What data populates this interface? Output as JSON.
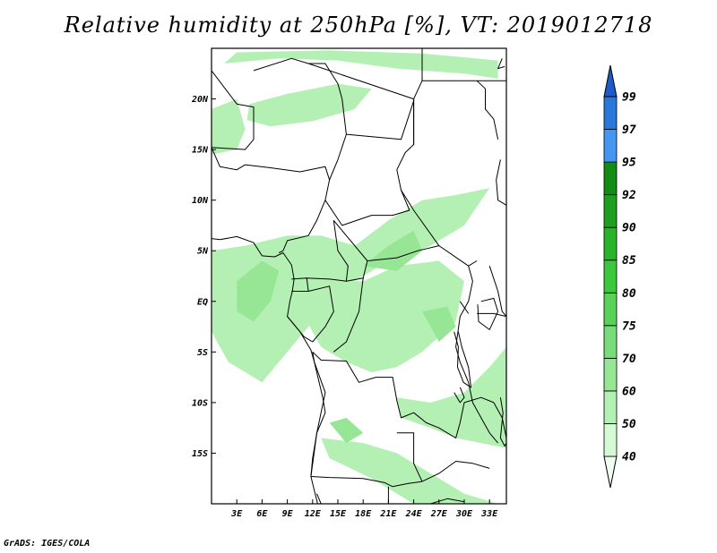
{
  "title": "Relative humidity at 250hPa [%], VT: 2019012718",
  "credit": "GrADS: IGES/COLA",
  "map": {
    "projection": "latlon",
    "lon_range": [
      0,
      35
    ],
    "lat_range": [
      -20,
      25
    ],
    "lat_ticks": [
      {
        "value": 20,
        "label": "20N"
      },
      {
        "value": 15,
        "label": "15N"
      },
      {
        "value": 10,
        "label": "10N"
      },
      {
        "value": 5,
        "label": "5N"
      },
      {
        "value": 0,
        "label": "EQ"
      },
      {
        "value": -5,
        "label": "5S"
      },
      {
        "value": -10,
        "label": "10S"
      },
      {
        "value": -15,
        "label": "15S"
      }
    ],
    "lon_ticks": [
      {
        "value": 3,
        "label": "3E"
      },
      {
        "value": 6,
        "label": "6E"
      },
      {
        "value": 9,
        "label": "9E"
      },
      {
        "value": 12,
        "label": "12E"
      },
      {
        "value": 15,
        "label": "15E"
      },
      {
        "value": 18,
        "label": "18E"
      },
      {
        "value": 21,
        "label": "21E"
      },
      {
        "value": 24,
        "label": "24E"
      },
      {
        "value": 27,
        "label": "27E"
      },
      {
        "value": 30,
        "label": "30E"
      },
      {
        "value": 33,
        "label": "33E"
      }
    ]
  },
  "colorbar": {
    "levels": [
      "40",
      "50",
      "60",
      "70",
      "75",
      "80",
      "85",
      "90",
      "92",
      "95",
      "97",
      "99"
    ],
    "colors": [
      "#f0fff0",
      "#d4fad4",
      "#b4f0b4",
      "#96e696",
      "#78dc78",
      "#5ad25a",
      "#3cc83c",
      "#28b428",
      "#1ea01e",
      "#128c12",
      "#4496f0",
      "#2878dc",
      "#1e5ac8"
    ]
  },
  "humidity_regions": [
    {
      "level": "50",
      "points": [
        [
          1.5,
          23.5
        ],
        [
          8,
          24
        ],
        [
          15,
          23.8
        ],
        [
          22,
          23
        ],
        [
          30,
          22.5
        ],
        [
          34,
          22
        ],
        [
          34,
          23.8
        ],
        [
          25,
          24.5
        ],
        [
          14,
          24.8
        ],
        [
          3,
          24.6
        ]
      ]
    },
    {
      "level": "50",
      "points": [
        [
          4.5,
          19.5
        ],
        [
          9,
          20.5
        ],
        [
          15,
          21.5
        ],
        [
          19,
          21
        ],
        [
          17,
          19
        ],
        [
          12,
          17.8
        ],
        [
          7,
          17.3
        ],
        [
          4.2,
          17.9
        ]
      ]
    },
    {
      "level": "50",
      "points": [
        [
          0,
          19
        ],
        [
          3,
          20
        ],
        [
          4,
          17
        ],
        [
          3,
          15
        ],
        [
          0,
          14.5
        ]
      ]
    },
    {
      "level": "50",
      "points": [
        [
          0,
          5
        ],
        [
          4,
          5.5
        ],
        [
          9,
          6.5
        ],
        [
          13,
          6.5
        ],
        [
          17,
          5.5
        ],
        [
          21,
          8
        ],
        [
          25,
          10
        ],
        [
          29,
          10.5
        ],
        [
          33,
          11.2
        ],
        [
          30,
          7.5
        ],
        [
          26,
          5.5
        ],
        [
          20,
          3.5
        ],
        [
          15,
          1
        ],
        [
          12,
          -2
        ],
        [
          9,
          -5
        ],
        [
          6,
          -8
        ],
        [
          2,
          -6
        ],
        [
          0,
          -3
        ]
      ]
    },
    {
      "level": "50",
      "points": [
        [
          10,
          0
        ],
        [
          14,
          2
        ],
        [
          18,
          2
        ],
        [
          22,
          3.5
        ],
        [
          27,
          4
        ],
        [
          30,
          2
        ],
        [
          29,
          -2
        ],
        [
          25,
          -5
        ],
        [
          22,
          -6.5
        ],
        [
          19,
          -7
        ],
        [
          16,
          -6
        ],
        [
          13,
          -4.5
        ]
      ]
    },
    {
      "level": "50",
      "points": [
        [
          22,
          -9.5
        ],
        [
          26,
          -10
        ],
        [
          30,
          -9
        ],
        [
          33,
          -6.5
        ],
        [
          35,
          -4.5
        ],
        [
          35,
          -14.5
        ],
        [
          32,
          -14
        ],
        [
          29,
          -13.5
        ],
        [
          26,
          -12.5
        ],
        [
          22.5,
          -11.5
        ]
      ]
    },
    {
      "level": "50",
      "points": [
        [
          13,
          -13.5
        ],
        [
          18,
          -14
        ],
        [
          22,
          -15
        ],
        [
          25,
          -16.5
        ],
        [
          28,
          -18
        ],
        [
          30,
          -19
        ],
        [
          34,
          -20
        ],
        [
          24,
          -20
        ],
        [
          19,
          -17.5
        ],
        [
          14,
          -15.5
        ]
      ]
    },
    {
      "level": "60",
      "points": [
        [
          3,
          2
        ],
        [
          6,
          4
        ],
        [
          8,
          3
        ],
        [
          7,
          0
        ],
        [
          5,
          -2
        ],
        [
          3,
          -1
        ]
      ]
    },
    {
      "level": "60",
      "points": [
        [
          18,
          3.5
        ],
        [
          21,
          5.5
        ],
        [
          24,
          7
        ],
        [
          25,
          5
        ],
        [
          22,
          3
        ]
      ]
    },
    {
      "level": "60",
      "points": [
        [
          25,
          -1
        ],
        [
          28,
          -0.5
        ],
        [
          29,
          -2.5
        ],
        [
          27,
          -4
        ]
      ]
    },
    {
      "level": "60",
      "points": [
        [
          14,
          -12
        ],
        [
          16,
          -11.5
        ],
        [
          18,
          -13
        ],
        [
          16,
          -14
        ]
      ]
    }
  ],
  "borders": [
    [
      [
        0,
        22.8
      ],
      [
        3,
        19.5
      ],
      [
        5,
        19.2
      ],
      [
        5,
        16
      ],
      [
        4,
        15
      ],
      [
        0,
        15.2
      ]
    ],
    [
      [
        0,
        15.2
      ],
      [
        1,
        13.3
      ],
      [
        3,
        13
      ],
      [
        4,
        13.5
      ],
      [
        7,
        13.2
      ],
      [
        10.5,
        12.8
      ],
      [
        13.5,
        13.3
      ],
      [
        14,
        12
      ],
      [
        13.5,
        10
      ],
      [
        12.5,
        8
      ],
      [
        11.5,
        6.5
      ],
      [
        9,
        6
      ],
      [
        8.5,
        5
      ],
      [
        8,
        4.8
      ]
    ],
    [
      [
        5,
        22.8
      ],
      [
        9.5,
        24
      ],
      [
        11.5,
        23.5
      ],
      [
        13.5,
        23.5
      ],
      [
        15,
        21.5
      ],
      [
        15.5,
        20
      ],
      [
        16,
        16.5
      ],
      [
        15,
        14
      ],
      [
        14,
        12
      ]
    ],
    [
      [
        11.5,
        23.5
      ],
      [
        24,
        20
      ],
      [
        24,
        15.5
      ],
      [
        23,
        14.7
      ],
      [
        22,
        13
      ],
      [
        22.5,
        11
      ],
      [
        23.5,
        9
      ]
    ],
    [
      [
        16,
        16.5
      ],
      [
        22.5,
        16
      ],
      [
        24,
        19.8
      ]
    ],
    [
      [
        25,
        25
      ],
      [
        25,
        21.8
      ],
      [
        31.5,
        21.8
      ],
      [
        35,
        21.8
      ]
    ],
    [
      [
        24,
        15.5
      ],
      [
        24,
        20
      ],
      [
        25,
        21.8
      ]
    ],
    [
      [
        22.5,
        11
      ],
      [
        24,
        9
      ],
      [
        27,
        5.5
      ],
      [
        30.5,
        3.5
      ],
      [
        31.5,
        4
      ]
    ],
    [
      [
        13.5,
        10
      ],
      [
        15.5,
        7.5
      ],
      [
        19,
        8.5
      ],
      [
        21.5,
        8.5
      ],
      [
        23.5,
        9
      ]
    ],
    [
      [
        14.5,
        8
      ],
      [
        16,
        6.5
      ],
      [
        18.5,
        4
      ],
      [
        22,
        4.3
      ],
      [
        24.5,
        5
      ],
      [
        27,
        5.5
      ]
    ],
    [
      [
        9.5,
        2.2
      ],
      [
        11.3,
        2.3
      ],
      [
        14,
        2.2
      ],
      [
        16,
        2
      ],
      [
        16.2,
        3.5
      ],
      [
        15,
        5
      ],
      [
        14.5,
        8
      ]
    ],
    [
      [
        9.5,
        1
      ],
      [
        11.5,
        1
      ],
      [
        11.3,
        2.3
      ]
    ],
    [
      [
        11.5,
        1
      ],
      [
        14,
        1.5
      ],
      [
        14.5,
        -1
      ],
      [
        13.5,
        -2.5
      ],
      [
        12,
        -4
      ],
      [
        11,
        -3.5
      ],
      [
        10,
        -2.5
      ],
      [
        9,
        -1.5
      ]
    ],
    [
      [
        16,
        2
      ],
      [
        18,
        2.3
      ],
      [
        17.5,
        -1
      ],
      [
        16,
        -4
      ],
      [
        14.5,
        -5
      ]
    ],
    [
      [
        18.5,
        4
      ],
      [
        18,
        2.3
      ]
    ],
    [
      [
        30.5,
        3.5
      ],
      [
        31,
        2
      ],
      [
        30.5,
        0
      ],
      [
        29.5,
        -1.5
      ],
      [
        29,
        -4.5
      ],
      [
        29.5,
        -6
      ],
      [
        30.5,
        -8
      ]
    ],
    [
      [
        12,
        -5
      ],
      [
        13,
        -5.8
      ],
      [
        16,
        -5.9
      ],
      [
        17.5,
        -8
      ],
      [
        19.5,
        -7.5
      ],
      [
        21.5,
        -7.5
      ],
      [
        22,
        -9.8
      ],
      [
        22.5,
        -11.5
      ],
      [
        24,
        -11
      ],
      [
        25.5,
        -12
      ],
      [
        27,
        -12.5
      ],
      [
        29,
        -13.5
      ],
      [
        29.5,
        -12
      ],
      [
        30,
        -10
      ],
      [
        32,
        -9.5
      ],
      [
        33.5,
        -10
      ]
    ],
    [
      [
        12,
        -5
      ],
      [
        12.2,
        -6
      ]
    ],
    [
      [
        12.2,
        -6
      ],
      [
        13.5,
        -9
      ],
      [
        12.5,
        -13
      ],
      [
        11.8,
        -17.3
      ]
    ],
    [
      [
        11.8,
        -17.3
      ],
      [
        14,
        -17.4
      ],
      [
        18,
        -17.5
      ],
      [
        20.5,
        -17.9
      ],
      [
        21.5,
        -18.3
      ],
      [
        23.3,
        -18
      ],
      [
        25,
        -17.8
      ]
    ],
    [
      [
        22,
        -13
      ],
      [
        24,
        -13
      ],
      [
        24,
        -16
      ],
      [
        25,
        -17.8
      ]
    ],
    [
      [
        25,
        -17.8
      ],
      [
        27,
        -17
      ],
      [
        29,
        -15.8
      ],
      [
        31,
        -16
      ],
      [
        33,
        -16.5
      ]
    ],
    [
      [
        12.5,
        -19
      ],
      [
        13,
        -20
      ]
    ],
    [
      [
        21,
        -20
      ],
      [
        21,
        -18.3
      ]
    ],
    [
      [
        26,
        -20
      ],
      [
        28,
        -19.5
      ],
      [
        30,
        -19.8
      ]
    ],
    [
      [
        30.5,
        -8
      ],
      [
        31,
        -10
      ],
      [
        32,
        -11.5
      ],
      [
        33,
        -13
      ],
      [
        34,
        -14
      ]
    ],
    [
      [
        33.5,
        -10
      ],
      [
        34.5,
        -11.5
      ],
      [
        35,
        -13.5
      ]
    ],
    [
      [
        33,
        3.5
      ],
      [
        34,
        1
      ],
      [
        34.5,
        -1
      ],
      [
        35,
        -1.5
      ]
    ],
    [
      [
        31.5,
        -1.2
      ],
      [
        33.5,
        -1.2
      ],
      [
        35,
        -1.5
      ]
    ],
    [
      [
        30.5,
        -1.2
      ],
      [
        29.5,
        0
      ]
    ],
    [
      [
        35,
        9.5
      ],
      [
        34,
        10
      ],
      [
        33.8,
        12
      ],
      [
        34.3,
        14
      ]
    ],
    [
      [
        31.5,
        21.8
      ],
      [
        32.5,
        21
      ],
      [
        32.5,
        19
      ],
      [
        33.5,
        18
      ],
      [
        34,
        16
      ]
    ]
  ],
  "coastlines": [
    [
      [
        0,
        6.2
      ],
      [
        1,
        6.1
      ],
      [
        3,
        6.4
      ],
      [
        5,
        5.8
      ],
      [
        6,
        4.5
      ],
      [
        7.5,
        4.4
      ],
      [
        8.5,
        4.8
      ],
      [
        9.5,
        3.6
      ],
      [
        9.8,
        2.2
      ],
      [
        9.6,
        1
      ],
      [
        9.3,
        0
      ],
      [
        9,
        -1.5
      ],
      [
        10.5,
        -3
      ],
      [
        11.8,
        -4.8
      ],
      [
        12.2,
        -6
      ],
      [
        13.2,
        -9.5
      ],
      [
        13.5,
        -11
      ],
      [
        12.5,
        -13
      ],
      [
        12,
        -15.5
      ],
      [
        11.8,
        -17.3
      ],
      [
        12.3,
        -19
      ],
      [
        12.6,
        -20
      ]
    ],
    [
      [
        28.8,
        -3
      ],
      [
        29.3,
        -4.5
      ],
      [
        29.2,
        -6.5
      ],
      [
        29.9,
        -8
      ],
      [
        30.8,
        -8.5
      ],
      [
        30.5,
        -6.5
      ],
      [
        29.7,
        -4.5
      ],
      [
        29.3,
        -3
      ]
    ],
    [
      [
        34.3,
        -9.5
      ],
      [
        34.6,
        -11
      ],
      [
        34.3,
        -13.5
      ],
      [
        34.8,
        -14.3
      ],
      [
        35,
        -14
      ]
    ],
    [
      [
        32,
        0
      ],
      [
        33.5,
        0.3
      ],
      [
        34,
        -1
      ],
      [
        33,
        -2.8
      ],
      [
        31.7,
        -2
      ],
      [
        31.6,
        -0.3
      ]
    ],
    [
      [
        29.5,
        -8.5
      ],
      [
        30,
        -9.5
      ],
      [
        29.5,
        -10
      ],
      [
        28.8,
        -9
      ]
    ],
    [
      [
        34.5,
        24
      ],
      [
        34,
        23
      ],
      [
        34.8,
        23.2
      ]
    ]
  ]
}
